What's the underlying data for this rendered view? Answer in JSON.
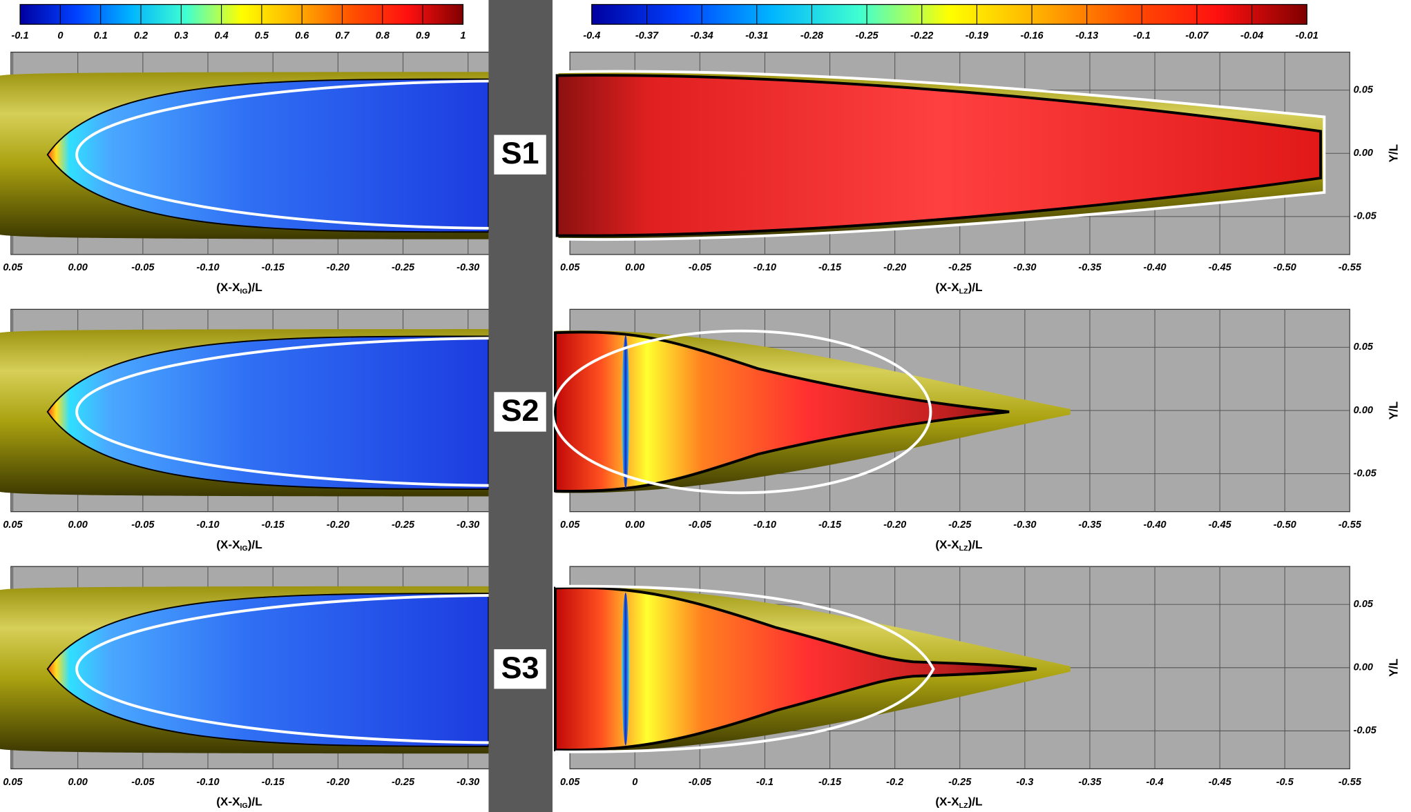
{
  "colorbars": [
    {
      "ticks": [
        -0.1,
        0,
        0.1,
        0.2,
        0.3,
        0.4,
        0.5,
        0.6,
        0.7,
        0.8,
        0.9,
        1
      ],
      "colors": [
        "#0000a0",
        "#0040ff",
        "#00b4ff",
        "#40ffd0",
        "#ffff00",
        "#ffb000",
        "#ff5000",
        "#ff1010",
        "#800000"
      ]
    },
    {
      "ticks": [
        -0.4,
        -0.37,
        -0.34,
        -0.31,
        -0.28,
        -0.25,
        -0.22,
        -0.19,
        -0.16,
        -0.13,
        -0.1,
        -0.07,
        -0.04,
        -0.01
      ],
      "colors": [
        "#0000a0",
        "#0040ff",
        "#00b4ff",
        "#40ffd0",
        "#ffff00",
        "#ffb000",
        "#ff5000",
        "#ff1010",
        "#800000"
      ]
    }
  ],
  "labels": [
    "S1",
    "S2",
    "S3"
  ],
  "chart_data": [
    {
      "type": "contour",
      "grid": true,
      "xlim": [
        0.05,
        -0.32
      ],
      "ylim": [
        -0.08,
        0.08
      ],
      "xticks": [
        0.05,
        {
          "value": 0,
          "label": "0.00"
        },
        -0.05,
        {
          "value": -0.1,
          "label": "-0.10"
        },
        -0.15,
        {
          "value": -0.2,
          "label": "-0.20"
        },
        -0.25,
        {
          "value": -0.3,
          "label": "-0.30"
        }
      ],
      "xlabel": {
        "head": "(X-X",
        "sub": "IG",
        "tail": ")/L"
      }
    },
    {
      "type": "contour",
      "grid": true,
      "xlim": [
        0.05,
        -0.55
      ],
      "ylim": [
        -0.08,
        0.08
      ],
      "xticks": [
        0.05,
        {
          "value": 0,
          "label": "0.00"
        },
        -0.05,
        {
          "value": -0.1,
          "label": "-0.10"
        },
        -0.15,
        {
          "value": -0.2,
          "label": "-0.20"
        },
        -0.25,
        {
          "value": -0.3,
          "label": "-0.30"
        },
        -0.35,
        {
          "value": -0.4,
          "label": "-0.40"
        },
        -0.45,
        {
          "value": -0.5,
          "label": "-0.50"
        },
        -0.55
      ],
      "yticks": [
        0.05,
        {
          "value": 0,
          "label": "0.00"
        },
        -0.05
      ],
      "xlabel": {
        "head": "(X-X",
        "sub": "LZ",
        "tail": ")/L"
      },
      "ylabel": "Y/L"
    },
    {
      "type": "contour",
      "grid": true,
      "xlim": [
        0.05,
        -0.32
      ],
      "ylim": [
        -0.08,
        0.08
      ],
      "xticks": [
        0.05,
        {
          "value": 0,
          "label": "0.00"
        },
        -0.05,
        {
          "value": -0.1,
          "label": "-0.10"
        },
        -0.15,
        {
          "value": -0.2,
          "label": "-0.20"
        },
        -0.25,
        {
          "value": -0.3,
          "label": "-0.30"
        }
      ],
      "xlabel": {
        "head": "(X-X",
        "sub": "IG",
        "tail": ")/L"
      }
    },
    {
      "type": "contour",
      "grid": true,
      "xlim": [
        0.05,
        -0.55
      ],
      "ylim": [
        -0.08,
        0.08
      ],
      "xticks": [
        0.05,
        {
          "value": 0,
          "label": "0.00"
        },
        -0.05,
        {
          "value": -0.1,
          "label": "-0.10"
        },
        -0.15,
        {
          "value": -0.2,
          "label": "-0.20"
        },
        -0.25,
        {
          "value": -0.3,
          "label": "-0.30"
        },
        -0.35,
        {
          "value": -0.4,
          "label": "-0.40"
        },
        -0.45,
        {
          "value": -0.5,
          "label": "-0.50"
        },
        -0.55
      ],
      "yticks": [
        0.05,
        {
          "value": 0,
          "label": "0.00"
        },
        -0.05
      ],
      "xlabel": {
        "head": "(X-X",
        "sub": "LZ",
        "tail": ")/L"
      },
      "ylabel": "Y/L"
    },
    {
      "type": "contour",
      "grid": true,
      "xlim": [
        0.05,
        -0.32
      ],
      "ylim": [
        -0.08,
        0.08
      ],
      "xticks": [
        0.05,
        {
          "value": 0,
          "label": "0.00"
        },
        -0.05,
        {
          "value": -0.1,
          "label": "-0.10"
        },
        -0.15,
        {
          "value": -0.2,
          "label": "-0.20"
        },
        -0.25,
        {
          "value": -0.3,
          "label": "-0.30"
        }
      ],
      "xlabel": {
        "head": "(X-X",
        "sub": "IG",
        "tail": ")/L"
      }
    },
    {
      "type": "contour",
      "grid": true,
      "xlim": [
        0.05,
        -0.55
      ],
      "ylim": [
        -0.08,
        0.08
      ],
      "xticks": [
        0.05,
        0,
        -0.05,
        -0.1,
        -0.15,
        -0.2,
        -0.25,
        -0.3,
        -0.35,
        -0.4,
        -0.45,
        -0.5,
        -0.55
      ],
      "yticks": [
        0.05,
        {
          "value": 0,
          "label": "0.00"
        },
        -0.05
      ],
      "xlabel": {
        "head": "(X-X",
        "sub": "LZ",
        "tail": ")/L"
      },
      "ylabel": "Y/L"
    }
  ]
}
